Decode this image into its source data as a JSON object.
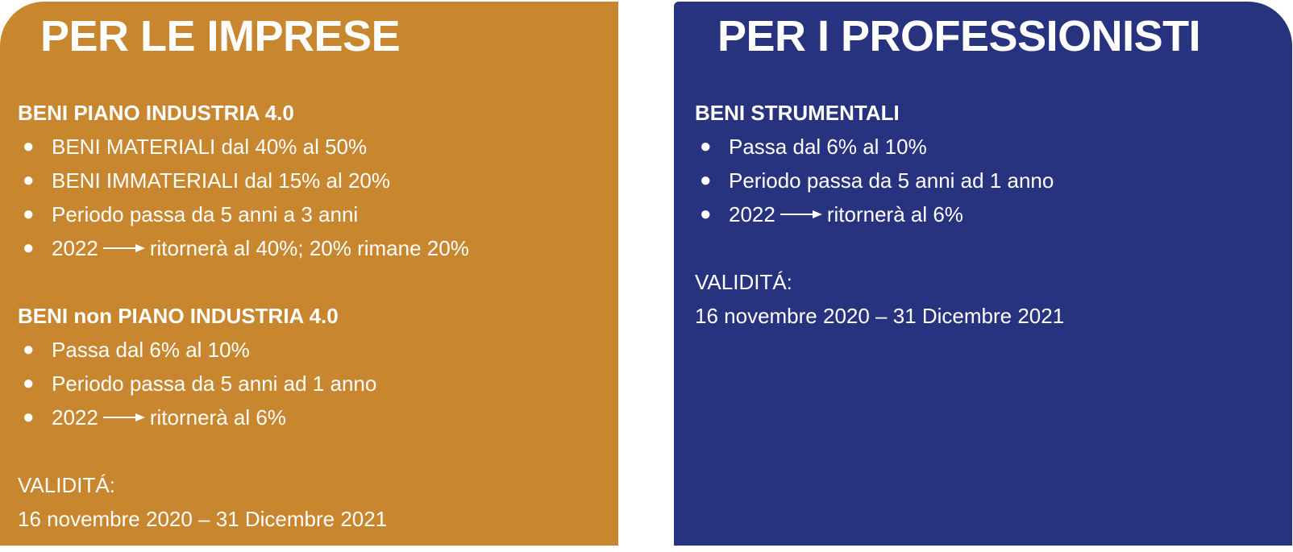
{
  "colors": {
    "left_panel": "#C8862F",
    "right_panel": "#283380",
    "text": "#FFFFFF"
  },
  "left": {
    "title": "PER LE IMPRESE",
    "section1": {
      "heading": "BENI PIANO INDUSTRIA 4.0",
      "items": [
        "BENI MATERIALI dal 40% al 50%",
        "BENI IMMATERIALI dal 15% al 20%",
        "Periodo passa da 5 anni a 3 anni"
      ],
      "arrow_item": {
        "from": "2022",
        "to": "ritornerà al 40%; 20% rimane 20%"
      }
    },
    "section2": {
      "heading": "BENI non PIANO INDUSTRIA 4.0",
      "items": [
        "Passa dal 6% al 10%",
        "Periodo passa da 5 anni ad 1 anno"
      ],
      "arrow_item": {
        "from": "2022",
        "to": "ritornerà al 6%"
      }
    },
    "validity_label": "VALIDITÁ:",
    "validity_value": "16 novembre 2020 – 31 Dicembre 2021"
  },
  "right": {
    "title": "PER I PROFESSIONISTI",
    "section1": {
      "heading": "BENI STRUMENTALI",
      "items": [
        "Passa dal 6% al 10%",
        "Periodo passa da 5 anni ad 1 anno"
      ],
      "arrow_item": {
        "from": "2022",
        "to": "ritornerà al 6%"
      }
    },
    "validity_label": "VALIDITÁ:",
    "validity_value": "16 novembre 2020 – 31 Dicembre 2021"
  }
}
